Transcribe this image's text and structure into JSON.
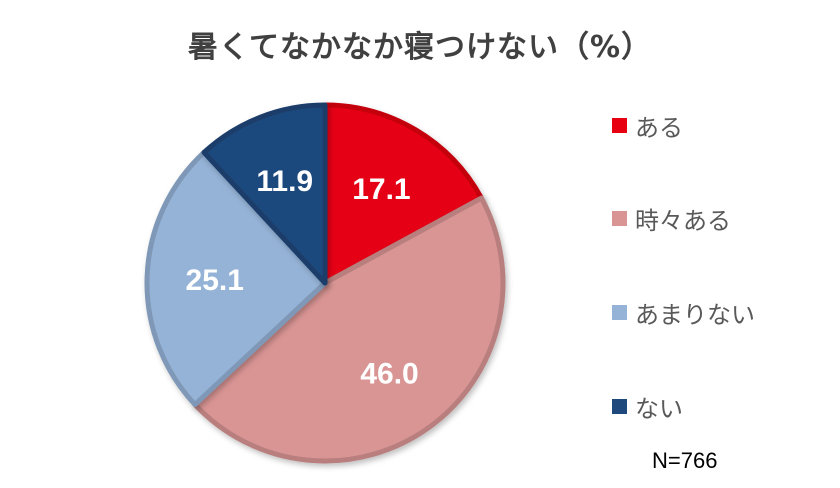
{
  "chart_data": {
    "type": "pie",
    "title": "暑くてなかなか寝つけない（%）",
    "categories": [
      "ある",
      "時々ある",
      "あまりない",
      "ない"
    ],
    "values": [
      17.1,
      46.0,
      25.1,
      11.9
    ],
    "value_labels": [
      "17.1",
      "46.0",
      "25.1",
      "11.9"
    ],
    "colors": [
      "#E60012",
      "#D99594",
      "#95B3D7",
      "#1F497D"
    ],
    "start": "12 o'clock, clockwise",
    "legend_placement": "right",
    "note": "N=766"
  }
}
